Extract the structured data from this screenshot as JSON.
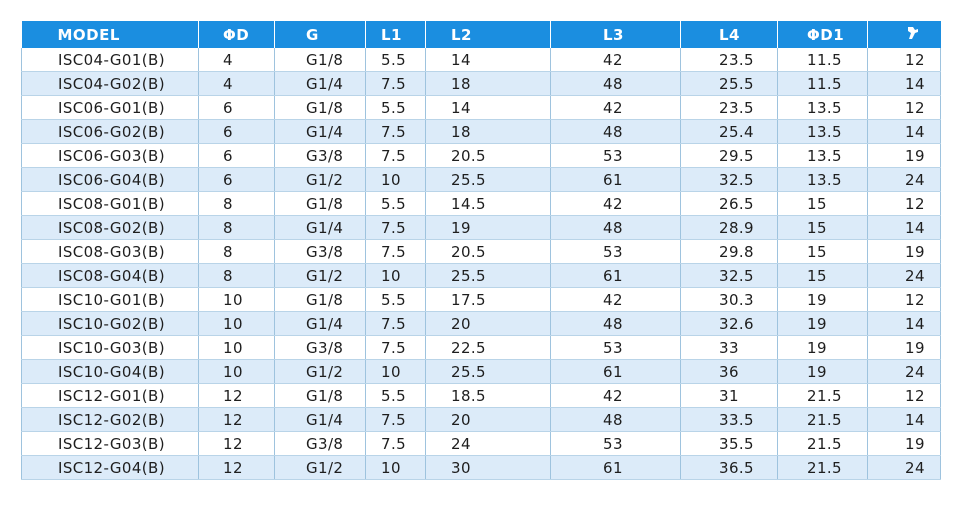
{
  "table": {
    "headers": [
      "MODEL",
      "ΦD",
      "G",
      "L1",
      "L2",
      "L3",
      "L4",
      "ΦD1"
    ],
    "wrench_header_icon": "wrench-size-icon",
    "colors": {
      "header": "#1b8ee0",
      "alt_row": "#dcebf9"
    },
    "rows": [
      [
        "ISC04-G01(B)",
        "4",
        "G1/8",
        "5.5",
        "14",
        "42",
        "23.5",
        "11.5",
        "12"
      ],
      [
        "ISC04-G02(B)",
        "4",
        "G1/4",
        "7.5",
        "18",
        "48",
        "25.5",
        "11.5",
        "14"
      ],
      [
        "ISC06-G01(B)",
        "6",
        "G1/8",
        "5.5",
        "14",
        "42",
        "23.5",
        "13.5",
        "12"
      ],
      [
        "ISC06-G02(B)",
        "6",
        "G1/4",
        "7.5",
        "18",
        "48",
        "25.4",
        "13.5",
        "14"
      ],
      [
        "ISC06-G03(B)",
        "6",
        "G3/8",
        "7.5",
        "20.5",
        "53",
        "29.5",
        "13.5",
        "19"
      ],
      [
        "ISC06-G04(B)",
        "6",
        "G1/2",
        "10",
        "25.5",
        "61",
        "32.5",
        "13.5",
        "24"
      ],
      [
        "ISC08-G01(B)",
        "8",
        "G1/8",
        "5.5",
        "14.5",
        "42",
        "26.5",
        "15",
        "12"
      ],
      [
        "ISC08-G02(B)",
        "8",
        "G1/4",
        "7.5",
        "19",
        "48",
        "28.9",
        "15",
        "14"
      ],
      [
        "ISC08-G03(B)",
        "8",
        "G3/8",
        "7.5",
        "20.5",
        "53",
        "29.8",
        "15",
        "19"
      ],
      [
        "ISC08-G04(B)",
        "8",
        "G1/2",
        "10",
        "25.5",
        "61",
        "32.5",
        "15",
        "24"
      ],
      [
        "ISC10-G01(B)",
        "10",
        "G1/8",
        "5.5",
        "17.5",
        "42",
        "30.3",
        "19",
        "12"
      ],
      [
        "ISC10-G02(B)",
        "10",
        "G1/4",
        "7.5",
        "20",
        "48",
        "32.6",
        "19",
        "14"
      ],
      [
        "ISC10-G03(B)",
        "10",
        "G3/8",
        "7.5",
        "22.5",
        "53",
        "33",
        "19",
        "19"
      ],
      [
        "ISC10-G04(B)",
        "10",
        "G1/2",
        "10",
        "25.5",
        "61",
        "36",
        "19",
        "24"
      ],
      [
        "ISC12-G01(B)",
        "12",
        "G1/8",
        "5.5",
        "18.5",
        "42",
        "31",
        "21.5",
        "12"
      ],
      [
        "ISC12-G02(B)",
        "12",
        "G1/4",
        "7.5",
        "20",
        "48",
        "33.5",
        "21.5",
        "14"
      ],
      [
        "ISC12-G03(B)",
        "12",
        "G3/8",
        "7.5",
        "24",
        "53",
        "35.5",
        "21.5",
        "19"
      ],
      [
        "ISC12-G04(B)",
        "12",
        "G1/2",
        "10",
        "30",
        "61",
        "36.5",
        "21.5",
        "24"
      ]
    ]
  }
}
